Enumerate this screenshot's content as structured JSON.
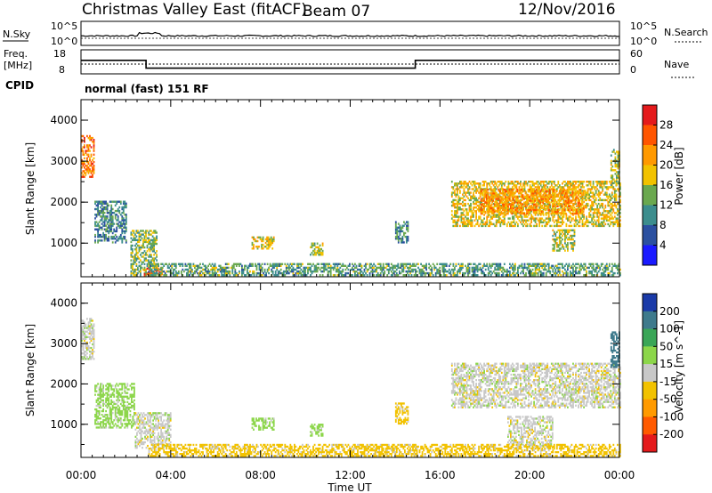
{
  "header": {
    "station": "Christmas Valley East (fitACF)",
    "beam": "Beam 07",
    "date": "12/Nov/2016"
  },
  "panels": {
    "nsky_label": "N.Sky",
    "nsearch_label": "N.Search",
    "noise_ticks": [
      "10^5",
      "10^0"
    ],
    "noise_right_ticks": [
      "10^5",
      "10^0"
    ],
    "freq_label_1": "Freq.",
    "freq_label_2": "[MHz]",
    "freq_ticks": [
      "18",
      "8"
    ],
    "nave_label": "Nave",
    "nave_ticks": [
      "60",
      "0"
    ],
    "cpid_label": "CPID",
    "cpid_text": "normal (fast) 151 RF"
  },
  "axes": {
    "ylabel": "Slant Range [km]",
    "xlabel": "Time UT",
    "yticks": [
      "4000",
      "3000",
      "2000",
      "1000"
    ],
    "xticks": [
      "00:00",
      "04:00",
      "08:00",
      "12:00",
      "16:00",
      "20:00",
      "00:00"
    ]
  },
  "power_scale": {
    "label": "Power [dB]",
    "ticks": [
      "28",
      "24",
      "20",
      "16",
      "12",
      "8",
      "4"
    ],
    "colors": [
      "#e41a1c",
      "#ff5500",
      "#ff9900",
      "#f2c200",
      "#6aa84f",
      "#3c8d8d",
      "#2b50a0",
      "#1a1aff"
    ]
  },
  "velocity_scale": {
    "label": "Velocity [m s^-1]",
    "ticks": [
      "200",
      "100",
      "50",
      "15",
      "-15",
      "-50",
      "-100",
      "-200"
    ],
    "colors": [
      "#1a3aa8",
      "#3e7a8c",
      "#3aa657",
      "#8cd64a",
      "#c8c8c8",
      "#f2c200",
      "#ff9a00",
      "#ff5a00",
      "#e41a1c"
    ]
  },
  "chart_data": {
    "type": "heatmap",
    "x_range_hours": [
      0,
      24
    ],
    "y_range_km": [
      180,
      4500
    ],
    "frequency_mhz": {
      "x_hours": [
        0,
        2.9,
        2.9,
        14.9,
        14.9,
        24
      ],
      "values": [
        14,
        14,
        10,
        10,
        14,
        14
      ]
    },
    "power_regions": [
      {
        "t0": 0.0,
        "t1": 0.6,
        "r0": 2600,
        "r1": 3600,
        "level": 24
      },
      {
        "t0": 0.6,
        "t1": 2.0,
        "r0": 1000,
        "r1": 2000,
        "level": 10
      },
      {
        "t0": 2.2,
        "t1": 3.4,
        "r0": 200,
        "r1": 1300,
        "level": 14
      },
      {
        "t0": 2.8,
        "t1": 3.6,
        "r0": 180,
        "r1": 400,
        "level": 26
      },
      {
        "t0": 7.6,
        "t1": 8.6,
        "r0": 850,
        "r1": 1150,
        "level": 18
      },
      {
        "t0": 10.2,
        "t1": 10.8,
        "r0": 700,
        "r1": 1000,
        "level": 16
      },
      {
        "t0": 14.0,
        "t1": 14.6,
        "r0": 1000,
        "r1": 1500,
        "level": 10
      },
      {
        "t0": 16.5,
        "t1": 24.0,
        "r0": 1400,
        "r1": 2500,
        "level": 18
      },
      {
        "t0": 17.8,
        "t1": 22.4,
        "r0": 1700,
        "r1": 2300,
        "level": 22
      },
      {
        "t0": 21.0,
        "t1": 22.0,
        "r0": 800,
        "r1": 1300,
        "level": 16
      },
      {
        "t0": 23.6,
        "t1": 24.0,
        "r0": 2400,
        "r1": 3300,
        "level": 16
      },
      {
        "t0": 3.0,
        "t1": 24.0,
        "r0": 200,
        "r1": 500,
        "level": 12
      }
    ],
    "velocity_regions": [
      {
        "t0": 0.0,
        "t1": 0.6,
        "r0": 2600,
        "r1": 3600,
        "velocity": 0
      },
      {
        "t0": 0.6,
        "t1": 2.4,
        "r0": 900,
        "r1": 2000,
        "velocity": 30
      },
      {
        "t0": 2.4,
        "t1": 4.0,
        "r0": 400,
        "r1": 1300,
        "velocity": 0
      },
      {
        "t0": 7.6,
        "t1": 8.6,
        "r0": 850,
        "r1": 1150,
        "velocity": 30
      },
      {
        "t0": 10.2,
        "t1": 10.8,
        "r0": 700,
        "r1": 1000,
        "velocity": 30
      },
      {
        "t0": 14.0,
        "t1": 14.6,
        "r0": 1000,
        "r1": 1500,
        "velocity": -30
      },
      {
        "t0": 16.5,
        "t1": 24.0,
        "r0": 1400,
        "r1": 2500,
        "velocity": 0
      },
      {
        "t0": 19.0,
        "t1": 21.0,
        "r0": 400,
        "r1": 1200,
        "velocity": 0
      },
      {
        "t0": 3.0,
        "t1": 24.0,
        "r0": 200,
        "r1": 500,
        "velocity": -30
      },
      {
        "t0": 23.6,
        "t1": 24.0,
        "r0": 2400,
        "r1": 3300,
        "velocity": 150
      }
    ]
  }
}
